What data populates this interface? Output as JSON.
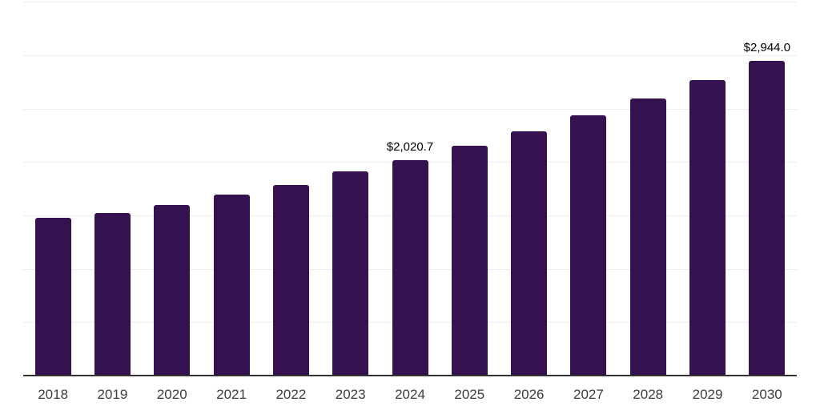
{
  "chart_data": {
    "type": "bar",
    "title": "",
    "xlabel": "",
    "ylabel": "",
    "categories": [
      "2018",
      "2019",
      "2020",
      "2021",
      "2022",
      "2023",
      "2024",
      "2025",
      "2026",
      "2027",
      "2028",
      "2029",
      "2030"
    ],
    "values": [
      1480.0,
      1522.0,
      1595.0,
      1692.0,
      1787.0,
      1910.0,
      2020.7,
      2151.6,
      2291.0,
      2439.4,
      2597.5,
      2765.8,
      2944.0
    ],
    "data_labels": [
      {
        "category": "2024",
        "text": "$2,020.7"
      },
      {
        "category": "2030",
        "text": "$2,944.0"
      }
    ],
    "value_prefix": "$",
    "ylim": [
      0,
      3500
    ],
    "gridline_step": 500,
    "grid": "horizontal",
    "legend": "none",
    "y_tick_labels_visible": false,
    "colors": {
      "bar": "#351150",
      "gridline": "#ededed",
      "axis_line": "#333333",
      "tick_label": "#3d3d3d",
      "data_label": "#000000",
      "background": "#ffffff"
    }
  }
}
